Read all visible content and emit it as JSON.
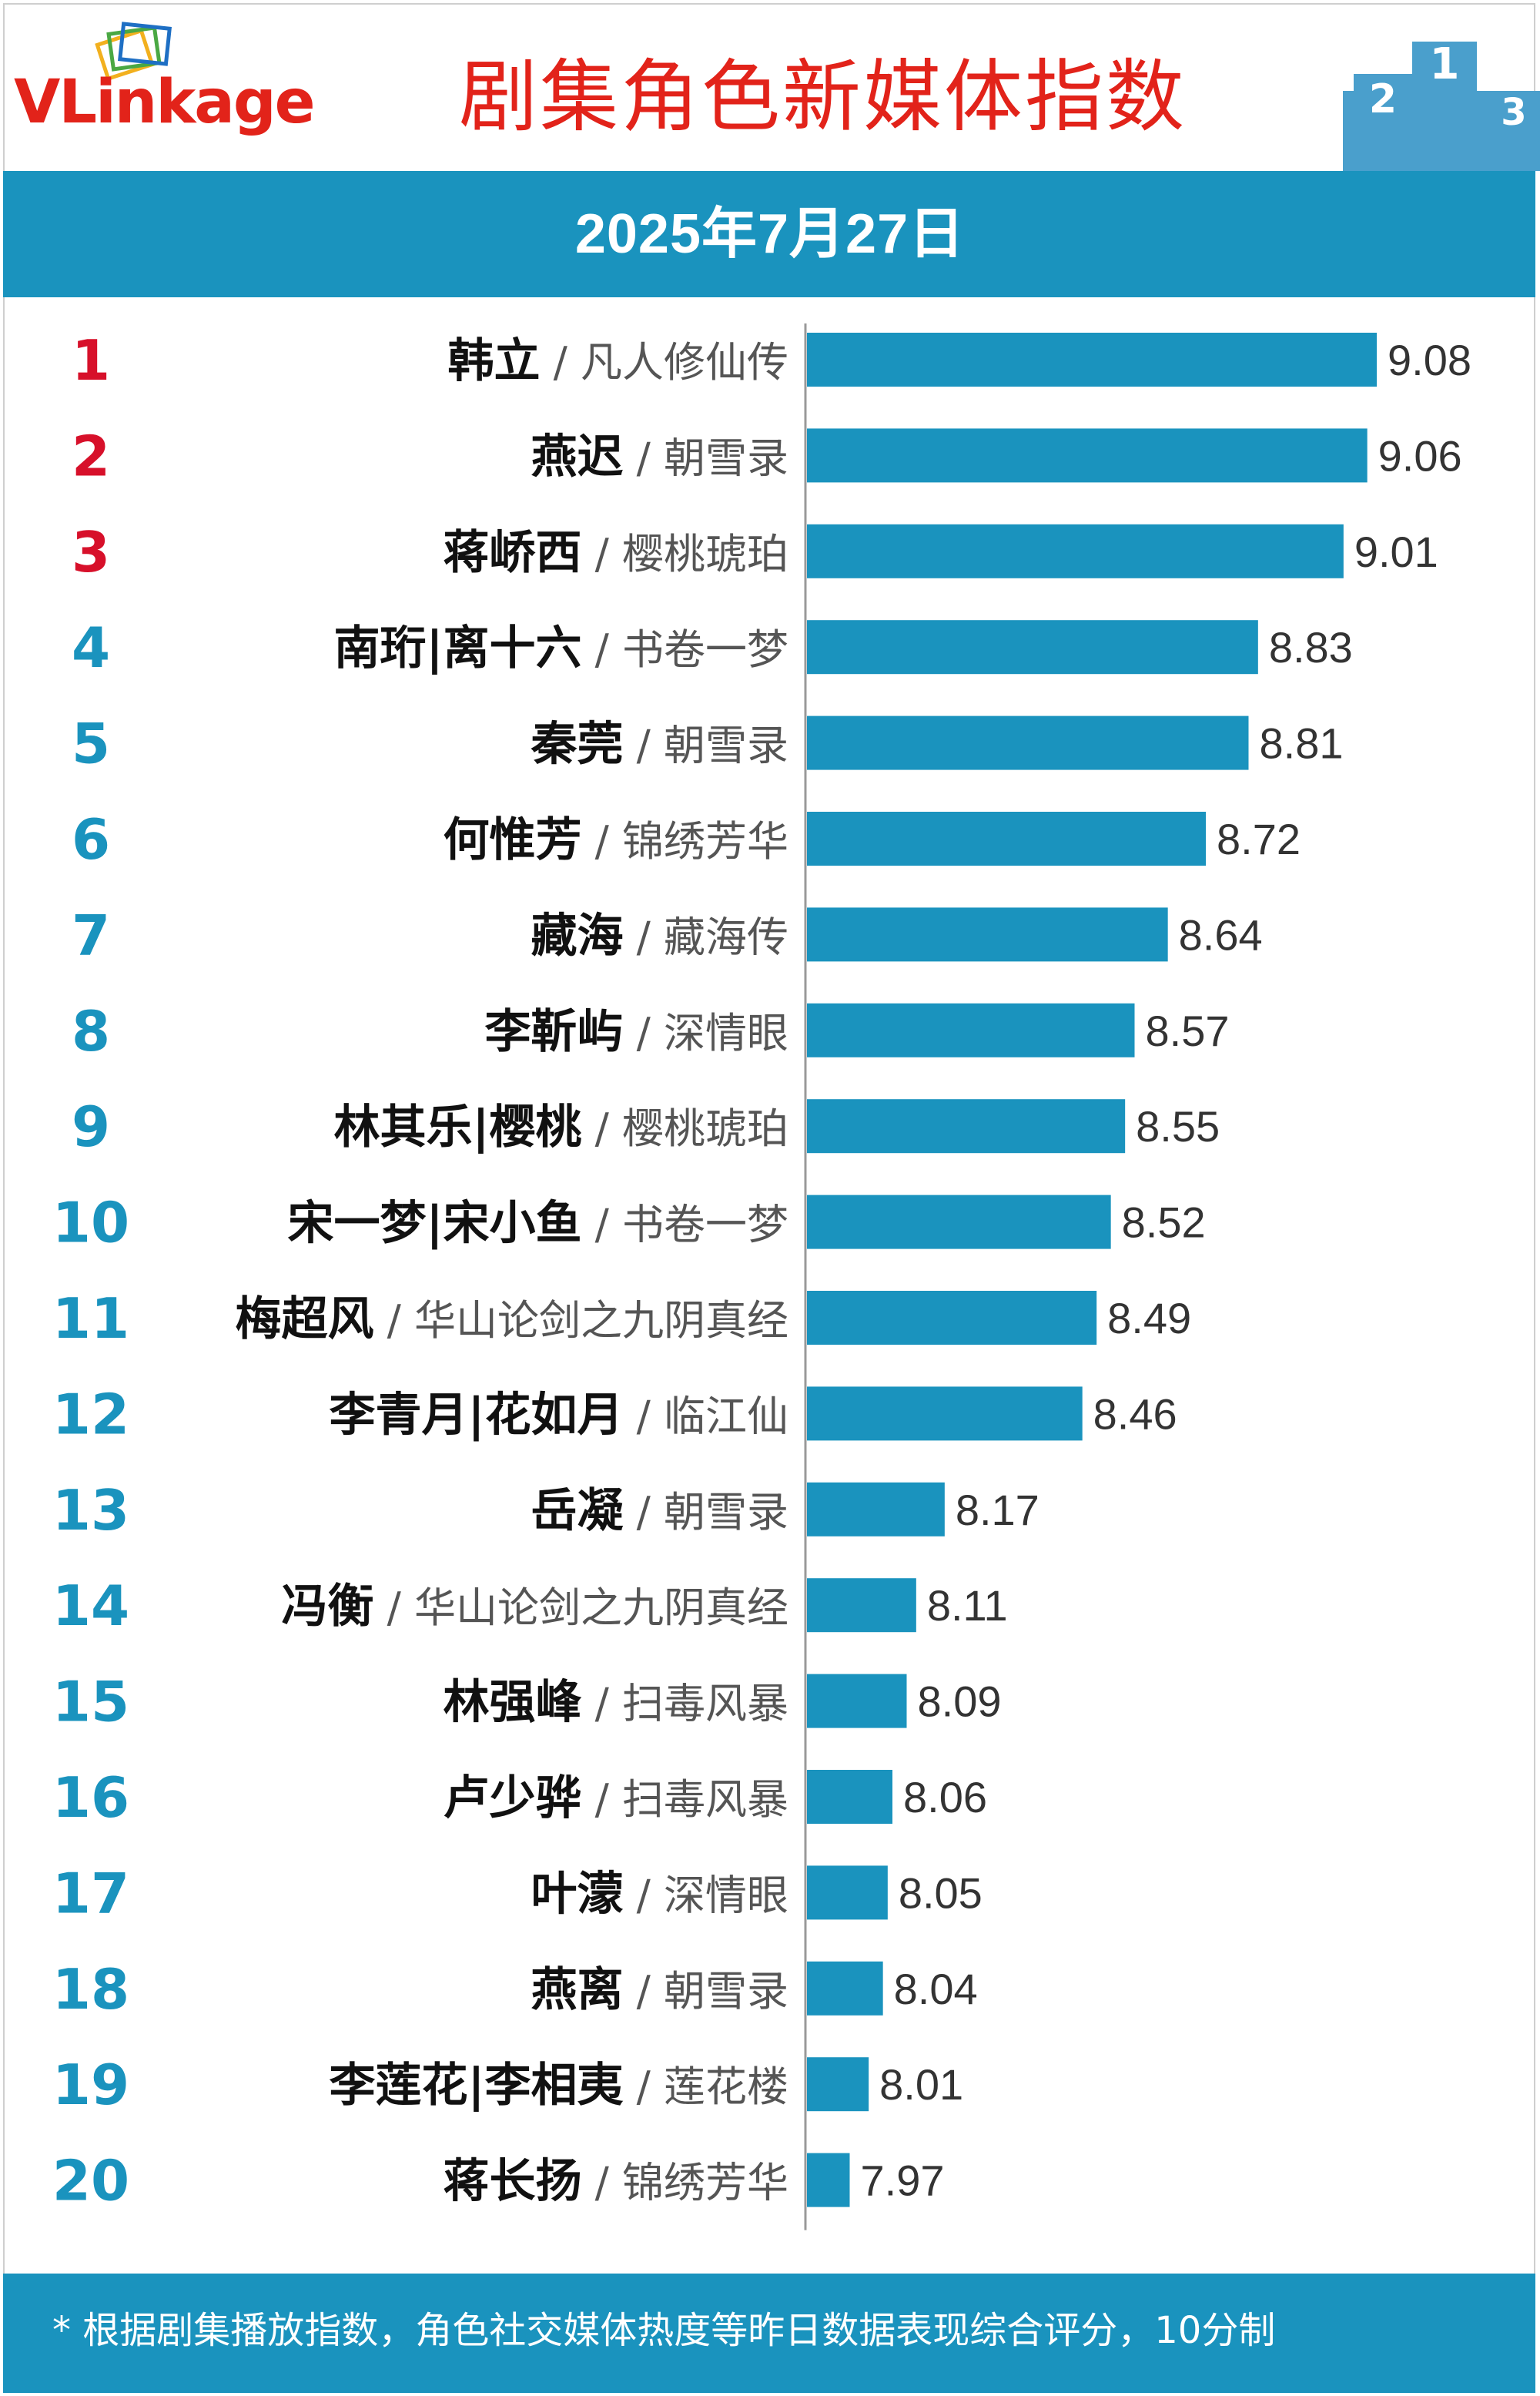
{
  "header": {
    "logo": {
      "name": "VLinkage",
      "icon": "stacked-cards-logo-icon"
    },
    "title": "剧集角色新媒体指数",
    "podium": {
      "icon": "podium-icon",
      "places": [
        "2",
        "1",
        "3"
      ]
    }
  },
  "date": "2025年7月27日",
  "chart_data": {
    "type": "bar",
    "orientation": "horizontal",
    "title": "剧集角色新媒体指数",
    "ranks": [
      "1",
      "2",
      "3",
      "4",
      "5",
      "6",
      "7",
      "8",
      "9",
      "10",
      "11",
      "12",
      "13",
      "14",
      "15",
      "16",
      "17",
      "18",
      "19",
      "20"
    ],
    "categories": [
      {
        "role": "韩立",
        "drama": "凡人修仙传"
      },
      {
        "role": "燕迟",
        "drama": "朝雪录"
      },
      {
        "role": "蒋峤西",
        "drama": "樱桃琥珀"
      },
      {
        "role": "南珩|离十六",
        "drama": "书卷一梦"
      },
      {
        "role": "秦莞",
        "drama": "朝雪录"
      },
      {
        "role": "何惟芳",
        "drama": "锦绣芳华"
      },
      {
        "role": "藏海",
        "drama": "藏海传"
      },
      {
        "role": "李靳屿",
        "drama": "深情眼"
      },
      {
        "role": "林其乐|樱桃",
        "drama": "樱桃琥珀"
      },
      {
        "role": "宋一梦|宋小鱼",
        "drama": "书卷一梦"
      },
      {
        "role": "梅超风",
        "drama": "华山论剑之九阴真经"
      },
      {
        "role": "李青月|花如月",
        "drama": "临江仙"
      },
      {
        "role": "岳凝",
        "drama": "朝雪录"
      },
      {
        "role": "冯衡",
        "drama": "华山论剑之九阴真经"
      },
      {
        "role": "林强峰",
        "drama": "扫毒风暴"
      },
      {
        "role": "卢少骅",
        "drama": "扫毒风暴"
      },
      {
        "role": "叶濛",
        "drama": "深情眼"
      },
      {
        "role": "燕离",
        "drama": "朝雪录"
      },
      {
        "role": "李莲花|李相夷",
        "drama": "莲花楼"
      },
      {
        "role": "蒋长扬",
        "drama": "锦绣芳华"
      }
    ],
    "values": [
      9.08,
      9.06,
      9.01,
      8.83,
      8.81,
      8.72,
      8.64,
      8.57,
      8.55,
      8.52,
      8.49,
      8.46,
      8.17,
      8.11,
      8.09,
      8.06,
      8.05,
      8.04,
      8.01,
      7.97
    ],
    "value_labels": [
      "9.08",
      "9.06",
      "9.01",
      "8.83",
      "8.81",
      "8.72",
      "8.64",
      "8.57",
      "8.55",
      "8.52",
      "8.49",
      "8.46",
      "8.17",
      "8.11",
      "8.09",
      "8.06",
      "8.05",
      "8.04",
      "8.01",
      "7.97"
    ],
    "separator": "/",
    "xlim": [
      7.88,
      9.08
    ],
    "grid": false,
    "legend": "none"
  },
  "colors": {
    "bar": "#1a93be",
    "band": "#1a93be",
    "title": "#e2231a",
    "rank_top3": "#d7102a",
    "rank_other": "#1a93be",
    "role_text": "#111111",
    "drama_text": "#555555",
    "value_text": "#333333",
    "axis": "#999999"
  },
  "footer": {
    "note": "* 根据剧集播放指数，角色社交媒体热度等昨日数据表现综合评分，10分制"
  }
}
